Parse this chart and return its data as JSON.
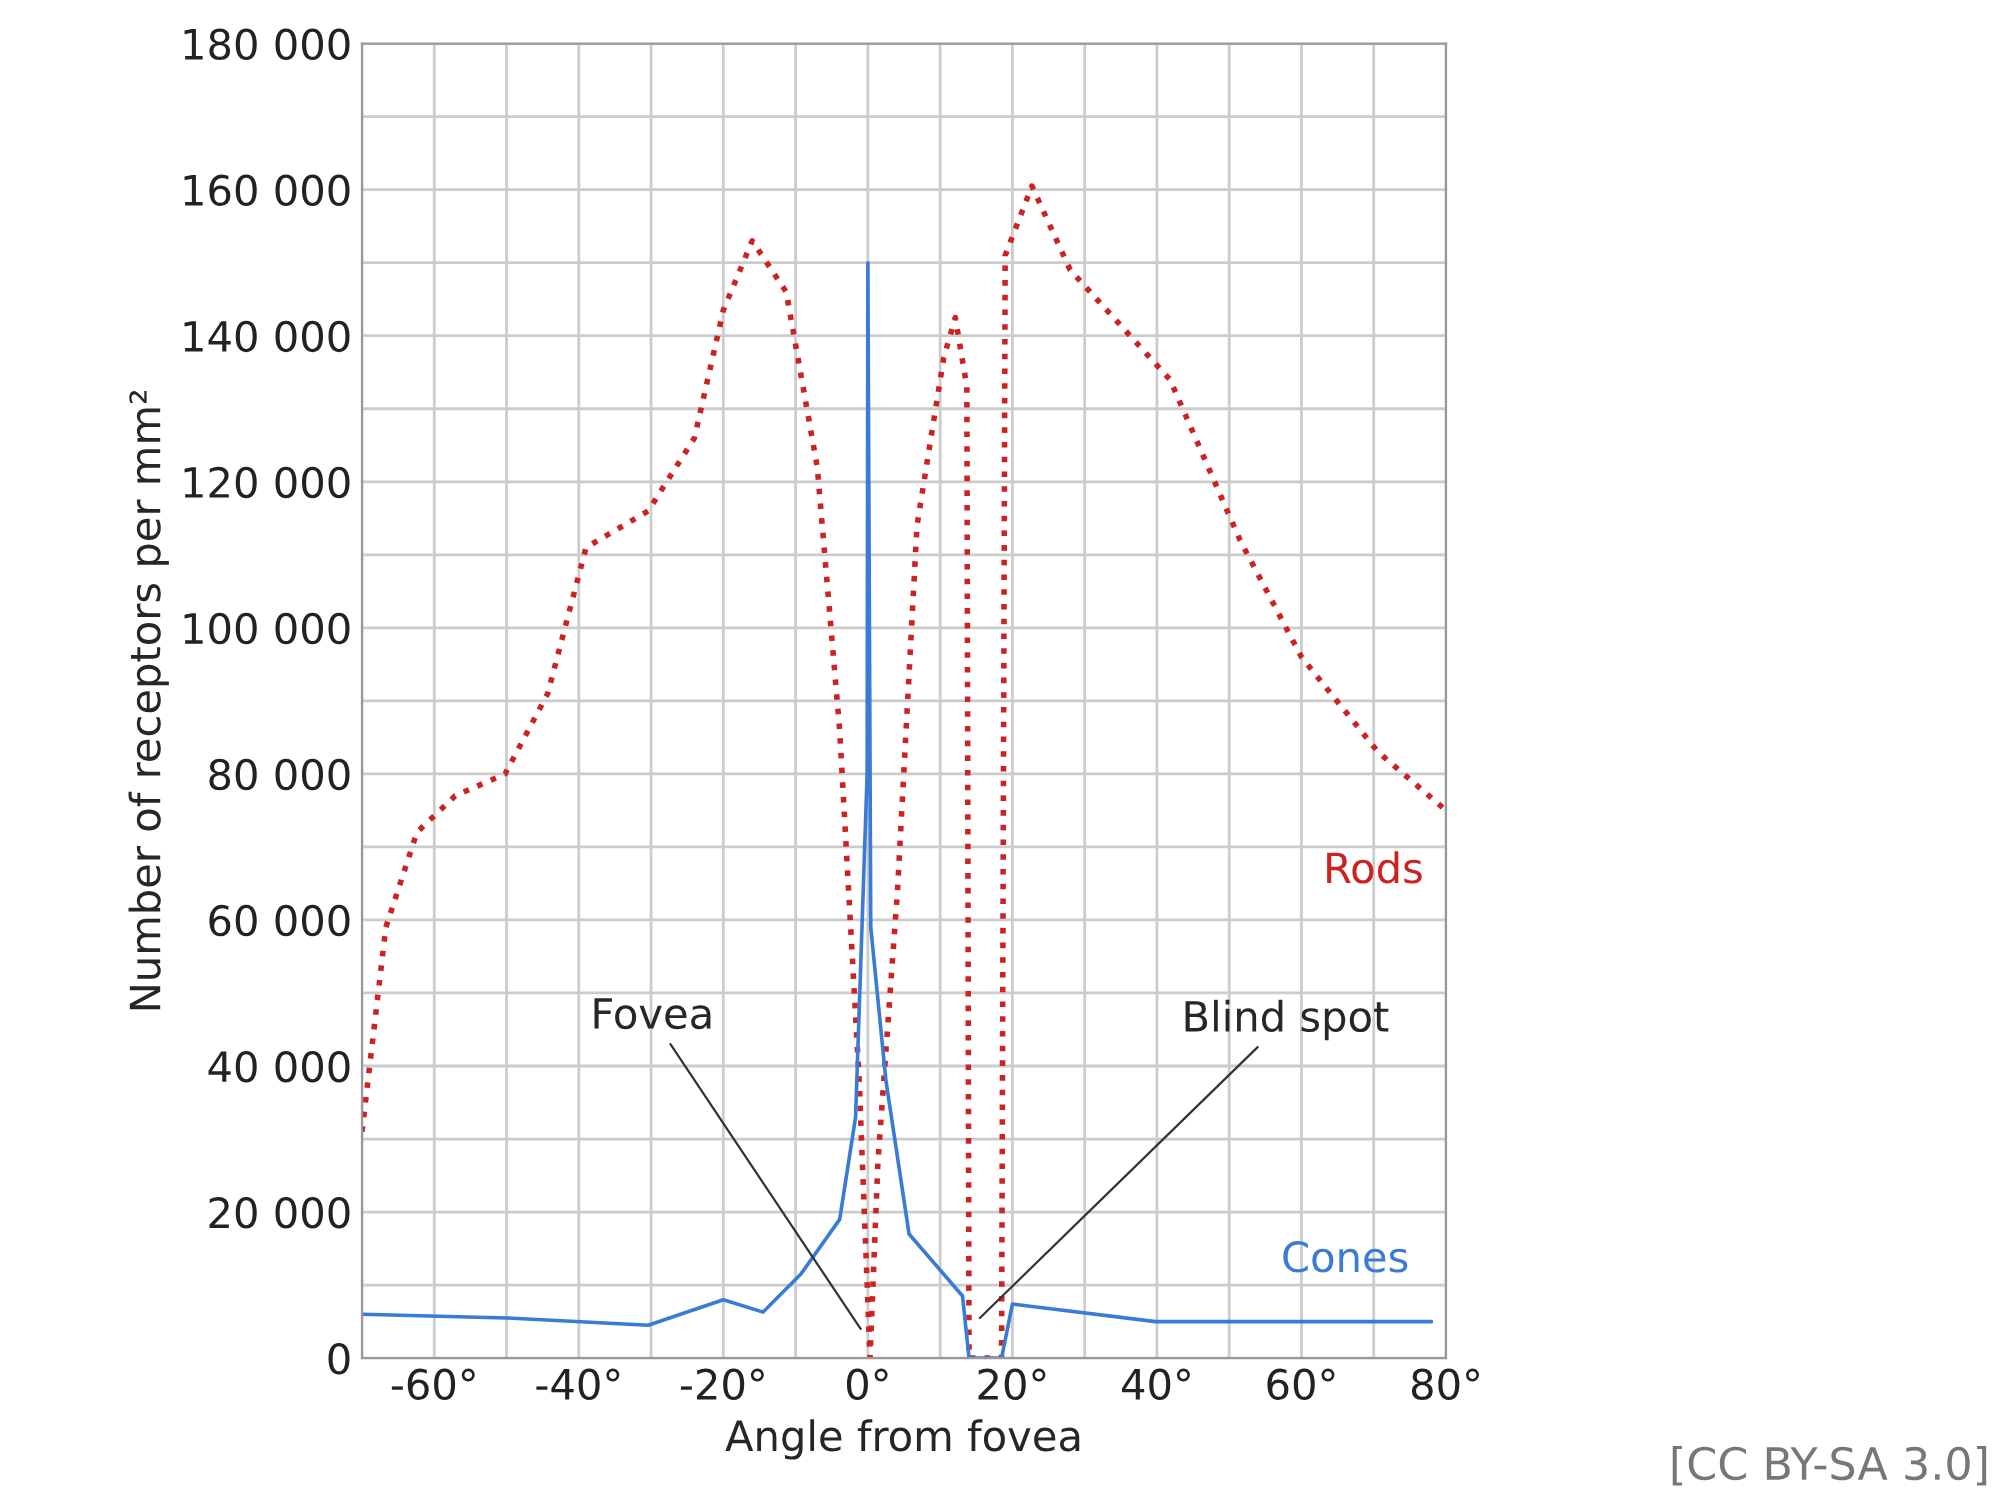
{
  "chart_data": {
    "type": "line",
    "xlabel": "Angle from fovea",
    "ylabel": "Number of receptors per mm²",
    "xlim": [
      -70,
      80
    ],
    "ylim": [
      0,
      180000
    ],
    "xticks": [
      {
        "value": -70,
        "label": null
      },
      {
        "value": -60,
        "label": "-60°"
      },
      {
        "value": -50,
        "label": null
      },
      {
        "value": -40,
        "label": "-40°"
      },
      {
        "value": -30,
        "label": null
      },
      {
        "value": -20,
        "label": "-20°"
      },
      {
        "value": -10,
        "label": null
      },
      {
        "value": 0,
        "label": "0°"
      },
      {
        "value": 10,
        "label": null
      },
      {
        "value": 20,
        "label": "20°"
      },
      {
        "value": 30,
        "label": null
      },
      {
        "value": 40,
        "label": "40°"
      },
      {
        "value": 50,
        "label": null
      },
      {
        "value": 60,
        "label": "60°"
      },
      {
        "value": 70,
        "label": null
      },
      {
        "value": 80,
        "label": "80°"
      }
    ],
    "yticks": [
      {
        "value": 0,
        "label": "0"
      },
      {
        "value": 10000,
        "label": null
      },
      {
        "value": 20000,
        "label": "20 000"
      },
      {
        "value": 30000,
        "label": null
      },
      {
        "value": 40000,
        "label": "40 000"
      },
      {
        "value": 50000,
        "label": null
      },
      {
        "value": 60000,
        "label": "60 000"
      },
      {
        "value": 70000,
        "label": null
      },
      {
        "value": 80000,
        "label": "80 000"
      },
      {
        "value": 90000,
        "label": null
      },
      {
        "value": 100000,
        "label": "100 000"
      },
      {
        "value": 110000,
        "label": null
      },
      {
        "value": 120000,
        "label": "120 000"
      },
      {
        "value": 130000,
        "label": null
      },
      {
        "value": 140000,
        "label": "140 000"
      },
      {
        "value": 150000,
        "label": null
      },
      {
        "value": 160000,
        "label": "160 000"
      },
      {
        "value": 170000,
        "label": null
      },
      {
        "value": 180000,
        "label": "180 000"
      }
    ],
    "grid": true,
    "series": [
      {
        "name": "Rods",
        "color": "#cc2222",
        "line_style": "dotted",
        "x": [
          -70,
          -66.7,
          -62.4,
          -57.1,
          -50.2,
          -44.3,
          -39,
          -30.4,
          -24,
          -20,
          -16,
          -11.3,
          -7,
          -3.9,
          -1.2,
          0.3,
          1.4,
          4.1,
          6.8,
          10.5,
          12.1,
          13.7,
          14,
          18.5,
          19,
          22.7,
          28,
          41.8,
          51.5,
          60,
          70.6,
          80
        ],
        "values": [
          31000,
          59000,
          72000,
          77000,
          80000,
          91000,
          111000,
          116000,
          126000,
          143500,
          153000,
          146000,
          122000,
          86000,
          38000,
          0,
          27000,
          64000,
          114000,
          137000,
          142500,
          133000,
          0,
          0,
          151000,
          160500,
          149000,
          134000,
          112000,
          96000,
          83000,
          75000
        ]
      },
      {
        "name": "Cones",
        "color": "#3a7bd5",
        "line_style": "solid",
        "x": [
          -70,
          -50,
          -30.4,
          -20,
          -14.5,
          -9.2,
          -3.9,
          -1.7,
          -0.1,
          0,
          0.4,
          2.5,
          5.7,
          13.1,
          14,
          18.5,
          20,
          39.8,
          78
        ],
        "values": [
          6000,
          5500,
          4500,
          8000,
          6300,
          11600,
          19000,
          33000,
          80000,
          150000,
          59000,
          38000,
          17000,
          8500,
          0,
          0,
          7400,
          5000,
          5000
        ]
      }
    ],
    "annotations": [
      {
        "text": "Fovea",
        "x": -1,
        "y": 4000
      },
      {
        "text": "Blind spot",
        "x": 15.5,
        "y": 5500
      },
      "[CC BY-SA 3.0]"
    ]
  }
}
